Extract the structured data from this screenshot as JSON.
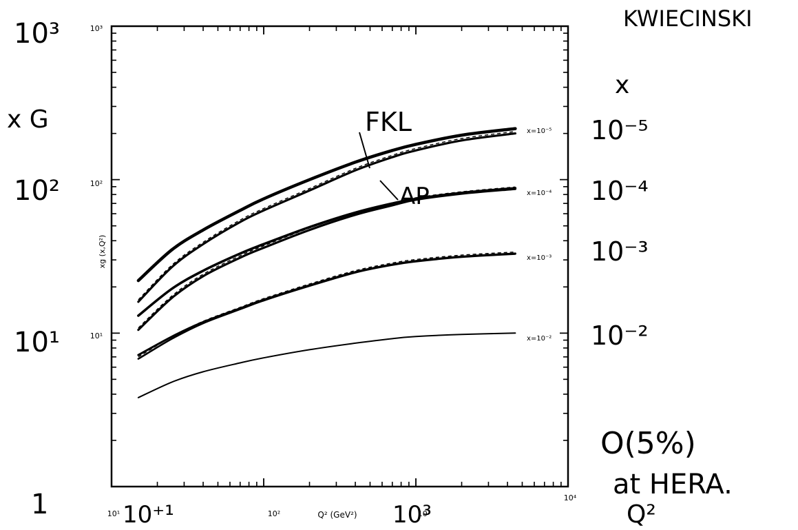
{
  "chart_data": {
    "type": "line",
    "xscale": "log",
    "yscale": "log",
    "xlim": [
      10,
      10000
    ],
    "ylim": [
      1,
      1000
    ],
    "xlabel": "Q² (GeV²)",
    "ylabel": "xg (x,Q²)",
    "x_tick_labels": [
      "10¹",
      "10²",
      "10³",
      "10⁴"
    ],
    "y_tick_labels": [
      "10¹",
      "10²",
      "10³"
    ],
    "x": [
      15,
      25,
      40,
      70,
      100,
      200,
      400,
      700,
      1000,
      2000,
      4500
    ],
    "series": [
      {
        "name": "FKL",
        "curve_label": "x=10⁻⁵",
        "values": [
          22.0,
          35.0,
          47.0,
          63.0,
          75.0,
          100.0,
          130.0,
          155.0,
          170.0,
          195.0,
          215.0
        ]
      },
      {
        "name": "AP",
        "curve_label": "",
        "values": [
          16.0,
          27.0,
          38.0,
          53.0,
          63.0,
          85.0,
          115.0,
          140.0,
          155.0,
          180.0,
          200.0
        ]
      },
      {
        "name": "",
        "curve_label": "x=10⁻⁴",
        "values": [
          13.0,
          19.5,
          25.5,
          33.0,
          38.0,
          49.0,
          61.0,
          70.0,
          75.0,
          82.0,
          88.0
        ]
      },
      {
        "name": "",
        "curve_label": "",
        "values": [
          10.5,
          17.0,
          23.5,
          31.0,
          36.0,
          47.0,
          59.0,
          68.0,
          74.0,
          81.0,
          87.0
        ]
      },
      {
        "name": "",
        "curve_label": "x=10⁻³",
        "values": [
          7.2,
          9.5,
          11.8,
          14.5,
          16.5,
          20.5,
          25.0,
          28.0,
          29.5,
          31.5,
          33.0
        ]
      },
      {
        "name": "",
        "curve_label": "",
        "values": [
          6.8,
          9.2,
          11.6,
          14.3,
          16.3,
          20.3,
          24.8,
          27.8,
          29.3,
          31.3,
          32.8
        ]
      },
      {
        "name": "",
        "curve_label": "x=10⁻²",
        "values": [
          3.8,
          4.8,
          5.6,
          6.4,
          6.9,
          7.8,
          8.6,
          9.2,
          9.5,
          9.8,
          10.0
        ]
      }
    ],
    "handwritten_annotations": {
      "author": "KWIECINSKI",
      "y_axis": "x G",
      "x_axis": "Q²",
      "x_column_header": "x",
      "x_values": [
        "10⁻⁵",
        "10⁻⁴",
        "10⁻³",
        "10⁻²"
      ],
      "y_ticks": [
        "10³",
        "10²",
        "10¹",
        "1"
      ],
      "x_ticks": [
        "10⁺¹",
        "10³"
      ],
      "note_line1": "O(5%)",
      "note_line2": "at HERA."
    }
  }
}
